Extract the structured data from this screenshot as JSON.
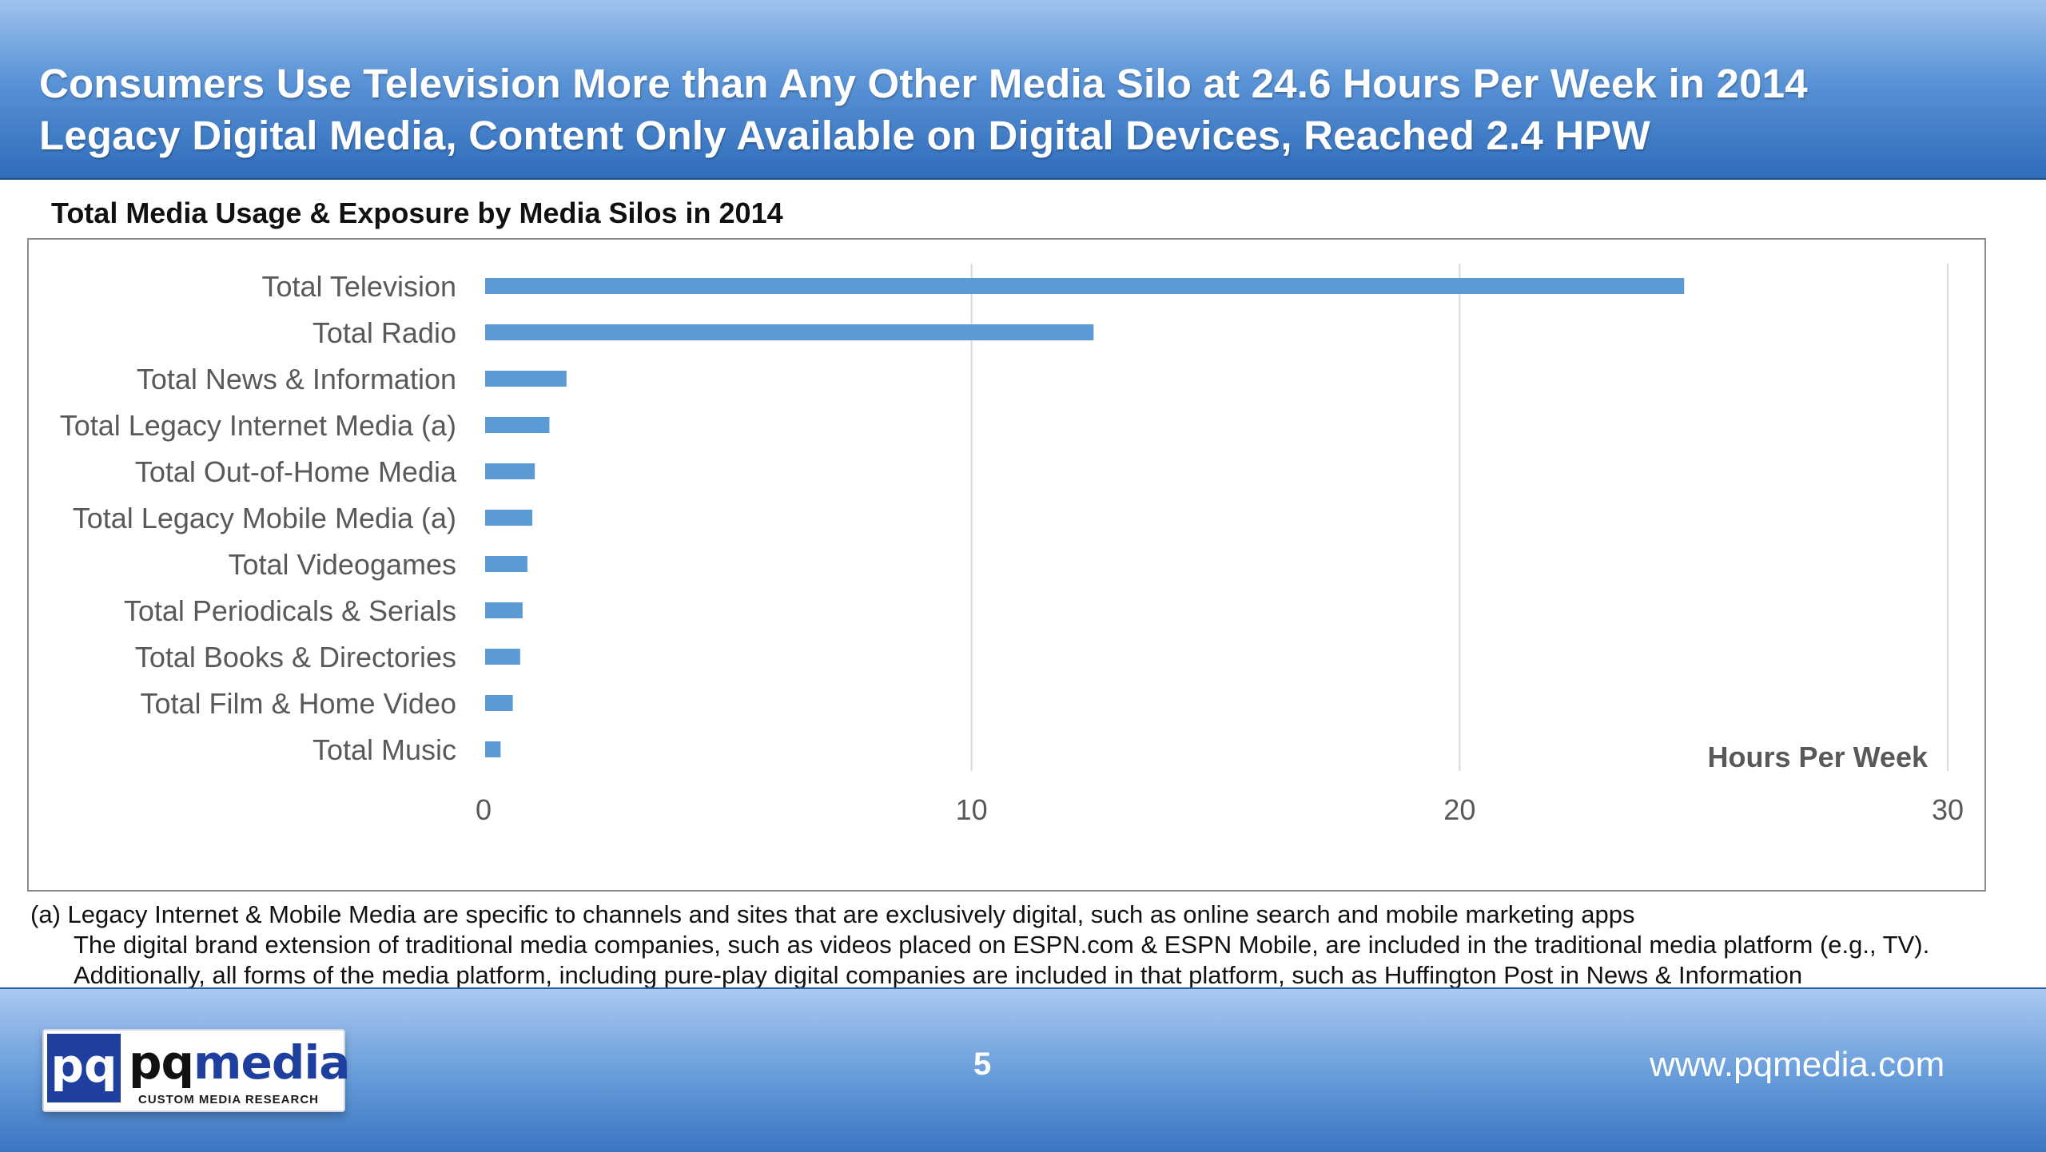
{
  "header": {
    "title_line1": "Consumers Use Television More than Any Other Media Silo at 24.6 Hours Per Week in 2014",
    "title_line2": "Legacy Digital Media, Content Only Available on Digital Devices, Reached 2.4 HPW"
  },
  "chart_data": {
    "type": "bar",
    "orientation": "horizontal",
    "title": "Total Media Usage & Exposure by Media Silos in 2014",
    "xlabel": "Hours Per Week",
    "categories": [
      "Total Television",
      "Total Radio",
      "Total News & Information",
      "Total Legacy Internet Media (a)",
      "Total Out-of-Home Media",
      "Total Legacy Mobile Media (a)",
      "Total Videogames",
      "Total Periodicals & Serials",
      "Total Books & Directories",
      "Total Film & Home Video",
      "Total Music"
    ],
    "values": [
      24.6,
      12.5,
      1.7,
      1.35,
      1.05,
      1.0,
      0.9,
      0.8,
      0.75,
      0.6,
      0.35
    ],
    "xlim": [
      0,
      30
    ],
    "xticks": [
      "0",
      "10",
      "20",
      "30"
    ],
    "grid": true,
    "bar_color": "#5b9bd5"
  },
  "footnotes": {
    "line1": "(a) Legacy Internet & Mobile Media are specific to channels and sites that are exclusively digital, such as online search and mobile marketing apps",
    "line2": "The digital brand extension of traditional media companies, such as videos placed on ESPN.com & ESPN Mobile, are included in the traditional media platform (e.g., TV).",
    "line3": "Additionally, all forms of the media platform, including pure-play digital companies are included in that platform, such as Huffington Post in News & Information"
  },
  "footer": {
    "logo_mark": "pq",
    "logo_word_a": "pq",
    "logo_word_b": "media",
    "logo_tagline": "CUSTOM MEDIA RESEARCH",
    "page_number": "5",
    "website": "www.pqmedia.com"
  }
}
